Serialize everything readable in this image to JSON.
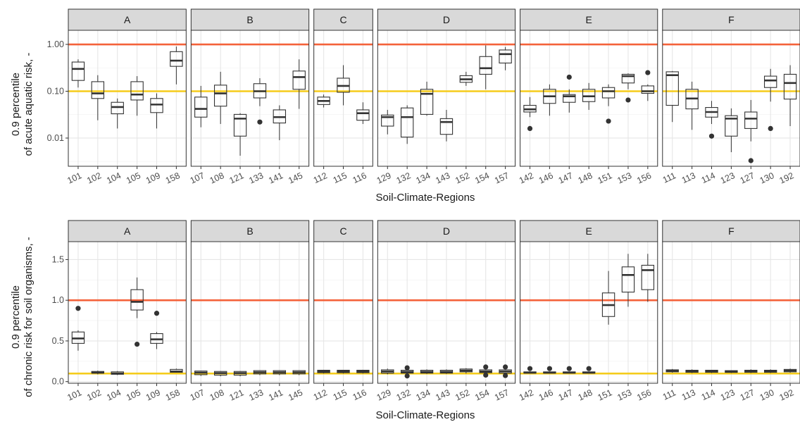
{
  "figure": {
    "top": {
      "ylabel_line1": "0.9 percentile",
      "ylabel_line2": "of acute aquatic risk, -",
      "xlabel": "Soil-Climate-Regions",
      "yscale": "log",
      "yticks": [
        "1.00",
        "0.10",
        "0.01"
      ],
      "ytick_values": [
        1.0,
        0.1,
        0.01
      ],
      "ylim": [
        0.0025,
        2.0
      ]
    },
    "bottom": {
      "ylabel_line1": "0.9 percentile",
      "ylabel_line2": "of chronic risk for soil organisms, -",
      "xlabel": "Soil-Climate-Regions",
      "yscale": "linear",
      "yticks": [
        "1.5",
        "1.0",
        "0.5",
        "0.0"
      ],
      "ytick_values": [
        1.5,
        1.0,
        0.5,
        0.0
      ],
      "ylim": [
        -0.02,
        1.72
      ]
    }
  },
  "colors": {
    "threshold_high": "#f4623a",
    "threshold_low": "#f5cc1b",
    "strip_bg": "#d9d9d9",
    "box_stroke": "#333333"
  },
  "chart_data": [
    {
      "type": "boxplot",
      "yscale": "log",
      "ylabel": "0.9 percentile of acute aquatic risk, -",
      "xlabel": "Soil-Climate-Regions",
      "reference_lines": [
        1.0,
        0.1
      ],
      "panels": [
        {
          "facet": "A",
          "boxes": [
            {
              "x": "101",
              "lower": 0.12,
              "q1": 0.17,
              "median": 0.3,
              "q3": 0.42,
              "upper": 0.48,
              "outliers": []
            },
            {
              "x": "102",
              "lower": 0.024,
              "q1": 0.07,
              "median": 0.09,
              "q3": 0.16,
              "upper": 0.22,
              "outliers": []
            },
            {
              "x": "104",
              "lower": 0.016,
              "q1": 0.033,
              "median": 0.046,
              "q3": 0.058,
              "upper": 0.07,
              "outliers": []
            },
            {
              "x": "105",
              "lower": 0.03,
              "q1": 0.065,
              "median": 0.085,
              "q3": 0.16,
              "upper": 0.21,
              "outliers": []
            },
            {
              "x": "109",
              "lower": 0.016,
              "q1": 0.035,
              "median": 0.052,
              "q3": 0.07,
              "upper": 0.09,
              "outliers": []
            },
            {
              "x": "158",
              "lower": 0.14,
              "q1": 0.34,
              "median": 0.45,
              "q3": 0.7,
              "upper": 0.9,
              "outliers": []
            }
          ]
        },
        {
          "facet": "B",
          "boxes": [
            {
              "x": "107",
              "lower": 0.017,
              "q1": 0.028,
              "median": 0.042,
              "q3": 0.075,
              "upper": 0.13,
              "outliers": []
            },
            {
              "x": "108",
              "lower": 0.02,
              "q1": 0.048,
              "median": 0.09,
              "q3": 0.135,
              "upper": 0.26,
              "outliers": []
            },
            {
              "x": "121",
              "lower": 0.0042,
              "q1": 0.011,
              "median": 0.026,
              "q3": 0.032,
              "upper": 0.034,
              "outliers": []
            },
            {
              "x": "133",
              "lower": 0.048,
              "q1": 0.072,
              "median": 0.1,
              "q3": 0.145,
              "upper": 0.19,
              "outliers": [
                0.022
              ]
            },
            {
              "x": "141",
              "lower": 0.009,
              "q1": 0.021,
              "median": 0.028,
              "q3": 0.04,
              "upper": 0.05,
              "outliers": []
            },
            {
              "x": "145",
              "lower": 0.042,
              "q1": 0.11,
              "median": 0.2,
              "q3": 0.27,
              "upper": 0.48,
              "outliers": []
            }
          ]
        },
        {
          "facet": "C",
          "boxes": [
            {
              "x": "112",
              "lower": 0.045,
              "q1": 0.052,
              "median": 0.062,
              "q3": 0.075,
              "upper": 0.085,
              "outliers": []
            },
            {
              "x": "115",
              "lower": 0.05,
              "q1": 0.095,
              "median": 0.13,
              "q3": 0.19,
              "upper": 0.36,
              "outliers": []
            },
            {
              "x": "116",
              "lower": 0.02,
              "q1": 0.024,
              "median": 0.034,
              "q3": 0.04,
              "upper": 0.058,
              "outliers": []
            }
          ]
        },
        {
          "facet": "D",
          "boxes": [
            {
              "x": "129",
              "lower": 0.012,
              "q1": 0.018,
              "median": 0.028,
              "q3": 0.031,
              "upper": 0.04,
              "outliers": []
            },
            {
              "x": "132",
              "lower": 0.0075,
              "q1": 0.0105,
              "median": 0.028,
              "q3": 0.044,
              "upper": 0.05,
              "outliers": []
            },
            {
              "x": "134",
              "lower": 0.03,
              "q1": 0.032,
              "median": 0.088,
              "q3": 0.11,
              "upper": 0.16,
              "outliers": []
            },
            {
              "x": "143",
              "lower": 0.0085,
              "q1": 0.012,
              "median": 0.022,
              "q3": 0.026,
              "upper": 0.04,
              "outliers": []
            },
            {
              "x": "152",
              "lower": 0.13,
              "q1": 0.155,
              "median": 0.18,
              "q3": 0.215,
              "upper": 0.26,
              "outliers": []
            },
            {
              "x": "154",
              "lower": 0.11,
              "q1": 0.23,
              "median": 0.31,
              "q3": 0.55,
              "upper": 0.95,
              "outliers": []
            },
            {
              "x": "157",
              "lower": 0.28,
              "q1": 0.4,
              "median": 0.62,
              "q3": 0.76,
              "upper": 0.88,
              "outliers": []
            }
          ]
        },
        {
          "facet": "E",
          "boxes": [
            {
              "x": "142",
              "lower": 0.028,
              "q1": 0.036,
              "median": 0.041,
              "q3": 0.05,
              "upper": 0.075,
              "outliers": [
                0.016
              ]
            },
            {
              "x": "146",
              "lower": 0.03,
              "q1": 0.055,
              "median": 0.078,
              "q3": 0.11,
              "upper": 0.14,
              "outliers": []
            },
            {
              "x": "147",
              "lower": 0.035,
              "q1": 0.058,
              "median": 0.078,
              "q3": 0.085,
              "upper": 0.11,
              "outliers": [
                0.2
              ]
            },
            {
              "x": "148",
              "lower": 0.04,
              "q1": 0.06,
              "median": 0.078,
              "q3": 0.11,
              "upper": 0.15,
              "outliers": []
            },
            {
              "x": "151",
              "lower": 0.048,
              "q1": 0.072,
              "median": 0.1,
              "q3": 0.12,
              "upper": 0.14,
              "outliers": [
                0.023
              ]
            },
            {
              "x": "153",
              "lower": 0.11,
              "q1": 0.15,
              "median": 0.21,
              "q3": 0.23,
              "upper": 0.24,
              "outliers": [
                0.065
              ]
            },
            {
              "x": "156",
              "lower": 0.062,
              "q1": 0.09,
              "median": 0.1,
              "q3": 0.13,
              "upper": 0.14,
              "outliers": [
                0.25
              ]
            }
          ]
        },
        {
          "facet": "F",
          "boxes": [
            {
              "x": "111",
              "lower": 0.022,
              "q1": 0.05,
              "median": 0.22,
              "q3": 0.26,
              "upper": 0.27,
              "outliers": []
            },
            {
              "x": "113",
              "lower": 0.015,
              "q1": 0.042,
              "median": 0.07,
              "q3": 0.11,
              "upper": 0.16,
              "outliers": []
            },
            {
              "x": "114",
              "lower": 0.02,
              "q1": 0.028,
              "median": 0.036,
              "q3": 0.045,
              "upper": 0.062,
              "outliers": [
                0.011
              ]
            },
            {
              "x": "123",
              "lower": 0.005,
              "q1": 0.011,
              "median": 0.026,
              "q3": 0.03,
              "upper": 0.043,
              "outliers": []
            },
            {
              "x": "127",
              "lower": 0.0085,
              "q1": 0.016,
              "median": 0.026,
              "q3": 0.036,
              "upper": 0.065,
              "outliers": [
                0.0033
              ]
            },
            {
              "x": "130",
              "lower": 0.06,
              "q1": 0.12,
              "median": 0.17,
              "q3": 0.21,
              "upper": 0.3,
              "outliers": [
                0.016
              ]
            },
            {
              "x": "192",
              "lower": 0.018,
              "q1": 0.068,
              "median": 0.15,
              "q3": 0.23,
              "upper": 0.36,
              "outliers": []
            }
          ]
        }
      ]
    },
    {
      "type": "boxplot",
      "yscale": "linear",
      "ylabel": "0.9 percentile of chronic risk for soil organisms, -",
      "xlabel": "Soil-Climate-Regions",
      "reference_lines": [
        1.0,
        0.1
      ],
      "panels": [
        {
          "facet": "A",
          "boxes": [
            {
              "x": "101",
              "lower": 0.38,
              "q1": 0.47,
              "median": 0.53,
              "q3": 0.61,
              "upper": 0.63,
              "outliers": [
                0.9
              ]
            },
            {
              "x": "102",
              "lower": 0.09,
              "q1": 0.105,
              "median": 0.11,
              "q3": 0.125,
              "upper": 0.135,
              "outliers": []
            },
            {
              "x": "104",
              "lower": 0.08,
              "q1": 0.09,
              "median": 0.1,
              "q3": 0.12,
              "upper": 0.13,
              "outliers": []
            },
            {
              "x": "105",
              "lower": 0.78,
              "q1": 0.88,
              "median": 0.98,
              "q3": 1.13,
              "upper": 1.28,
              "outliers": [
                0.46
              ]
            },
            {
              "x": "109",
              "lower": 0.4,
              "q1": 0.47,
              "median": 0.52,
              "q3": 0.59,
              "upper": 0.61,
              "outliers": [
                0.84
              ]
            },
            {
              "x": "158",
              "lower": 0.11,
              "q1": 0.115,
              "median": 0.125,
              "q3": 0.15,
              "upper": 0.16,
              "outliers": []
            }
          ]
        },
        {
          "facet": "B",
          "boxes": [
            {
              "x": "107",
              "lower": 0.07,
              "q1": 0.085,
              "median": 0.11,
              "q3": 0.13,
              "upper": 0.135,
              "outliers": []
            },
            {
              "x": "108",
              "lower": 0.065,
              "q1": 0.08,
              "median": 0.105,
              "q3": 0.125,
              "upper": 0.13,
              "outliers": []
            },
            {
              "x": "121",
              "lower": 0.065,
              "q1": 0.08,
              "median": 0.105,
              "q3": 0.125,
              "upper": 0.13,
              "outliers": []
            },
            {
              "x": "133",
              "lower": 0.08,
              "q1": 0.095,
              "median": 0.115,
              "q3": 0.135,
              "upper": 0.14,
              "outliers": []
            },
            {
              "x": "141",
              "lower": 0.08,
              "q1": 0.095,
              "median": 0.115,
              "q3": 0.135,
              "upper": 0.14,
              "outliers": []
            },
            {
              "x": "145",
              "lower": 0.08,
              "q1": 0.095,
              "median": 0.115,
              "q3": 0.135,
              "upper": 0.14,
              "outliers": []
            }
          ]
        },
        {
          "facet": "C",
          "boxes": [
            {
              "x": "112",
              "lower": 0.1,
              "q1": 0.11,
              "median": 0.125,
              "q3": 0.14,
              "upper": 0.145,
              "outliers": []
            },
            {
              "x": "115",
              "lower": 0.1,
              "q1": 0.11,
              "median": 0.125,
              "q3": 0.14,
              "upper": 0.145,
              "outliers": []
            },
            {
              "x": "116",
              "lower": 0.1,
              "q1": 0.11,
              "median": 0.125,
              "q3": 0.14,
              "upper": 0.145,
              "outliers": []
            }
          ]
        },
        {
          "facet": "D",
          "boxes": [
            {
              "x": "129",
              "lower": 0.09,
              "q1": 0.105,
              "median": 0.125,
              "q3": 0.145,
              "upper": 0.16,
              "outliers": []
            },
            {
              "x": "132",
              "lower": 0.095,
              "q1": 0.105,
              "median": 0.12,
              "q3": 0.14,
              "upper": 0.15,
              "outliers": [
                0.17,
                0.07
              ]
            },
            {
              "x": "134",
              "lower": 0.095,
              "q1": 0.105,
              "median": 0.12,
              "q3": 0.14,
              "upper": 0.15,
              "outliers": []
            },
            {
              "x": "143",
              "lower": 0.095,
              "q1": 0.105,
              "median": 0.12,
              "q3": 0.14,
              "upper": 0.15,
              "outliers": []
            },
            {
              "x": "152",
              "lower": 0.1,
              "q1": 0.12,
              "median": 0.135,
              "q3": 0.155,
              "upper": 0.165,
              "outliers": []
            },
            {
              "x": "154",
              "lower": 0.095,
              "q1": 0.11,
              "median": 0.125,
              "q3": 0.145,
              "upper": 0.155,
              "outliers": [
                0.18,
                0.08
              ]
            },
            {
              "x": "157",
              "lower": 0.09,
              "q1": 0.105,
              "median": 0.125,
              "q3": 0.145,
              "upper": 0.155,
              "outliers": [
                0.18,
                0.075
              ]
            }
          ]
        },
        {
          "facet": "E",
          "boxes": [
            {
              "x": "142",
              "lower": 0.1,
              "q1": 0.105,
              "median": 0.11,
              "q3": 0.12,
              "upper": 0.125,
              "outliers": [
                0.16
              ]
            },
            {
              "x": "146",
              "lower": 0.1,
              "q1": 0.105,
              "median": 0.11,
              "q3": 0.12,
              "upper": 0.125,
              "outliers": [
                0.16
              ]
            },
            {
              "x": "147",
              "lower": 0.1,
              "q1": 0.105,
              "median": 0.11,
              "q3": 0.12,
              "upper": 0.125,
              "outliers": [
                0.16
              ]
            },
            {
              "x": "148",
              "lower": 0.1,
              "q1": 0.105,
              "median": 0.11,
              "q3": 0.12,
              "upper": 0.125,
              "outliers": [
                0.16
              ]
            },
            {
              "x": "151",
              "lower": 0.7,
              "q1": 0.8,
              "median": 0.94,
              "q3": 1.09,
              "upper": 1.36,
              "outliers": []
            },
            {
              "x": "153",
              "lower": 0.92,
              "q1": 1.1,
              "median": 1.31,
              "q3": 1.41,
              "upper": 1.57,
              "outliers": []
            },
            {
              "x": "156",
              "lower": 0.98,
              "q1": 1.13,
              "median": 1.37,
              "q3": 1.43,
              "upper": 1.57,
              "outliers": []
            }
          ]
        },
        {
          "facet": "F",
          "boxes": [
            {
              "x": "111",
              "lower": 0.11,
              "q1": 0.12,
              "median": 0.13,
              "q3": 0.145,
              "upper": 0.155,
              "outliers": []
            },
            {
              "x": "113",
              "lower": 0.105,
              "q1": 0.115,
              "median": 0.125,
              "q3": 0.14,
              "upper": 0.15,
              "outliers": []
            },
            {
              "x": "114",
              "lower": 0.105,
              "q1": 0.115,
              "median": 0.125,
              "q3": 0.14,
              "upper": 0.145,
              "outliers": []
            },
            {
              "x": "123",
              "lower": 0.105,
              "q1": 0.115,
              "median": 0.12,
              "q3": 0.135,
              "upper": 0.14,
              "outliers": []
            },
            {
              "x": "127",
              "lower": 0.105,
              "q1": 0.115,
              "median": 0.125,
              "q3": 0.14,
              "upper": 0.15,
              "outliers": []
            },
            {
              "x": "130",
              "lower": 0.105,
              "q1": 0.115,
              "median": 0.125,
              "q3": 0.14,
              "upper": 0.15,
              "outliers": []
            },
            {
              "x": "192",
              "lower": 0.11,
              "q1": 0.12,
              "median": 0.135,
              "q3": 0.15,
              "upper": 0.16,
              "outliers": []
            }
          ]
        }
      ]
    }
  ]
}
